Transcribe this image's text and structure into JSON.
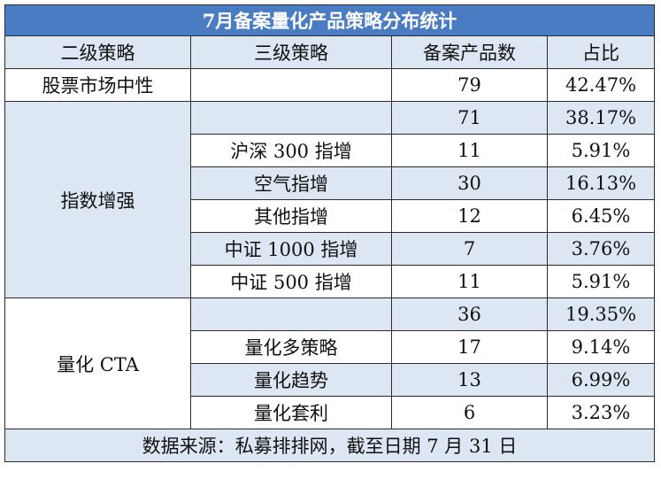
{
  "table": {
    "title": "7月备案量化产品策略分布统计",
    "headers": [
      "二级策略",
      "三级策略",
      "备案产品数",
      "占比"
    ],
    "groups": [
      {
        "name": "股票市场中性",
        "rows": [
          {
            "sub": "",
            "count": "79",
            "pct": "42.47%"
          }
        ]
      },
      {
        "name": "指数增强",
        "rows": [
          {
            "sub": "",
            "count": "71",
            "pct": "38.17%"
          },
          {
            "sub": "沪深 300 指增",
            "count": "11",
            "pct": "5.91%"
          },
          {
            "sub": "空气指增",
            "count": "30",
            "pct": "16.13%"
          },
          {
            "sub": "其他指增",
            "count": "12",
            "pct": "6.45%"
          },
          {
            "sub": "中证 1000 指增",
            "count": "7",
            "pct": "3.76%"
          },
          {
            "sub": "中证 500 指增",
            "count": "11",
            "pct": "5.91%"
          }
        ]
      },
      {
        "name": "量化 CTA",
        "rows": [
          {
            "sub": "",
            "count": "36",
            "pct": "19.35%"
          },
          {
            "sub": "量化多策略",
            "count": "17",
            "pct": "9.14%"
          },
          {
            "sub": "量化趋势",
            "count": "13",
            "pct": "6.99%"
          },
          {
            "sub": "量化套利",
            "count": "6",
            "pct": "3.23%"
          }
        ]
      }
    ],
    "footer": "数据来源：私募排排网，截至日期 7 月 31 日"
  },
  "colors": {
    "title_bg": "#4a7cc3",
    "shade_bg": "#dde6f3",
    "border": "#2b2b2b"
  }
}
